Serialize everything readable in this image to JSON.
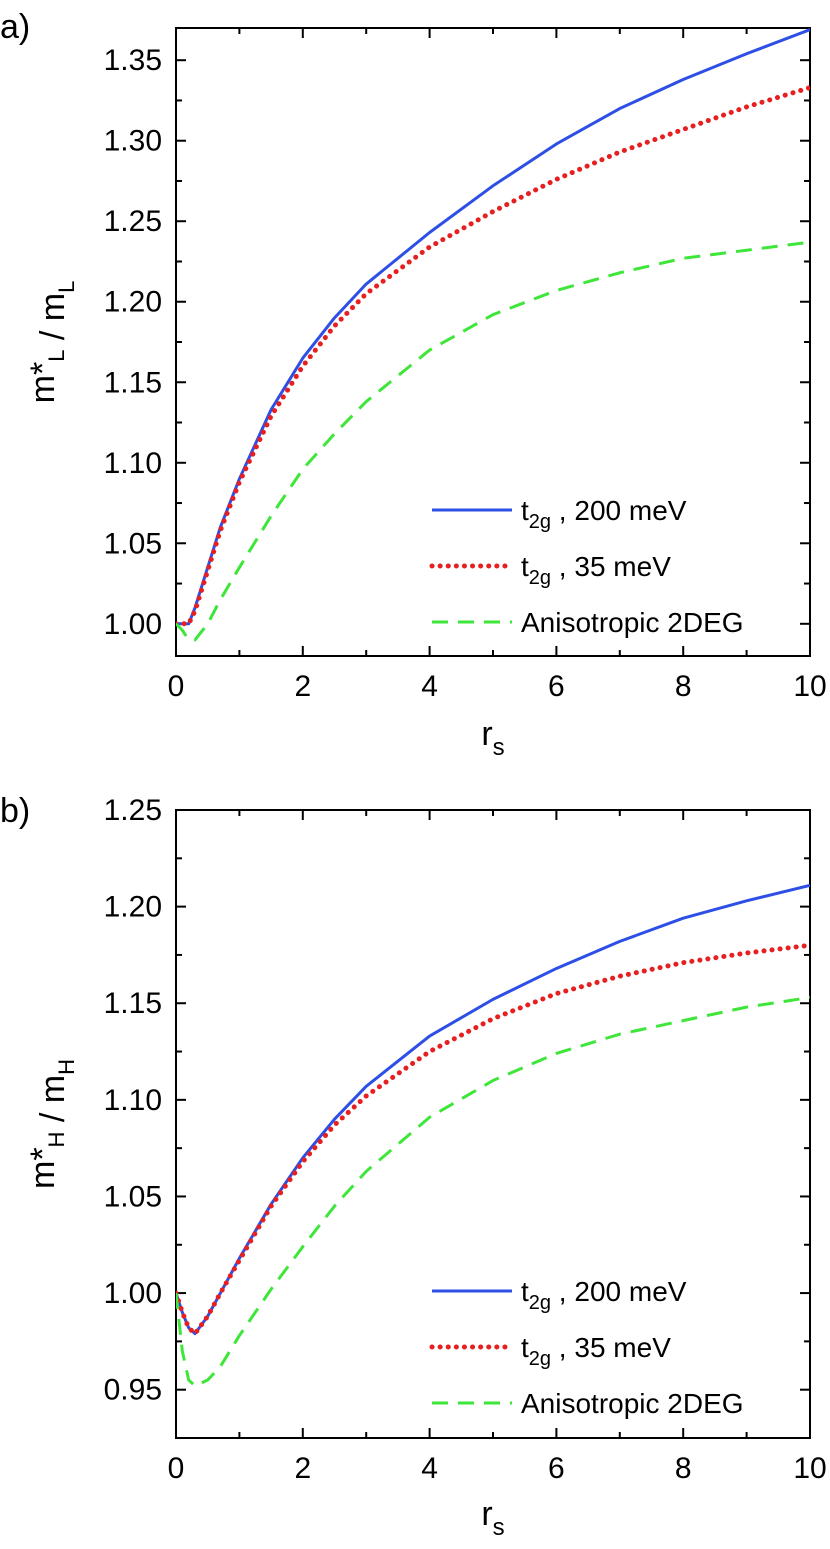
{
  "chart_data": [
    {
      "type": "line",
      "panel_label": "a)",
      "xlabel": "r_s",
      "ylabel": "m*_L / m_L",
      "xlim": [
        0,
        10
      ],
      "ylim": [
        0.98,
        1.37
      ],
      "x_ticks": [
        "0",
        "2",
        "4",
        "6",
        "8",
        "10"
      ],
      "y_ticks": [
        "1.00",
        "1.05",
        "1.10",
        "1.15",
        "1.20",
        "1.25",
        "1.30",
        "1.35"
      ],
      "y_tick_values": [
        1.0,
        1.05,
        1.1,
        1.15,
        1.2,
        1.25,
        1.3,
        1.35
      ],
      "legend_position": "bottom-right",
      "series": [
        {
          "name": "t_2g , 200 meV",
          "style": "solid",
          "color": "#2e4fe6",
          "x": [
            0,
            0.1,
            0.2,
            0.3,
            0.5,
            0.7,
            1.0,
            1.5,
            2,
            2.5,
            3,
            4,
            5,
            6,
            7,
            8,
            9,
            10
          ],
          "y": [
            1.0,
            1.0,
            1.0,
            1.01,
            1.035,
            1.06,
            1.09,
            1.133,
            1.165,
            1.19,
            1.211,
            1.243,
            1.272,
            1.298,
            1.32,
            1.338,
            1.354,
            1.369
          ]
        },
        {
          "name": "t_2g , 35 meV",
          "style": "dotted",
          "color": "#e62020",
          "x": [
            0,
            0.1,
            0.2,
            0.3,
            0.5,
            0.7,
            1.0,
            1.5,
            2,
            2.5,
            3,
            4,
            5,
            6,
            7,
            8,
            9,
            10
          ],
          "y": [
            1.0,
            1.0,
            1.0,
            1.008,
            1.033,
            1.058,
            1.088,
            1.129,
            1.16,
            1.185,
            1.205,
            1.234,
            1.256,
            1.276,
            1.293,
            1.307,
            1.321,
            1.333
          ]
        },
        {
          "name": "Anisotropic 2DEG",
          "style": "dashed",
          "color": "#3ee63a",
          "x": [
            0,
            0.1,
            0.2,
            0.3,
            0.5,
            0.7,
            1.0,
            1.5,
            2,
            2.5,
            3,
            4,
            5,
            6,
            7,
            8,
            9,
            10
          ],
          "y": [
            1.0,
            0.996,
            0.99,
            0.99,
            1.0,
            1.015,
            1.035,
            1.067,
            1.096,
            1.118,
            1.138,
            1.17,
            1.192,
            1.207,
            1.218,
            1.227,
            1.232,
            1.237
          ]
        }
      ]
    },
    {
      "type": "line",
      "panel_label": "b)",
      "xlabel": "r_s",
      "ylabel": "m*_H / m_H",
      "xlim": [
        0,
        10
      ],
      "ylim": [
        0.925,
        1.25
      ],
      "x_ticks": [
        "0",
        "2",
        "4",
        "6",
        "8",
        "10"
      ],
      "y_ticks": [
        "0.95",
        "1.00",
        "1.05",
        "1.10",
        "1.15",
        "1.20",
        "1.25"
      ],
      "y_tick_values": [
        0.95,
        1.0,
        1.05,
        1.1,
        1.15,
        1.2,
        1.25
      ],
      "legend_position": "bottom-right",
      "series": [
        {
          "name": "t_2g , 200 meV",
          "style": "solid",
          "color": "#2e4fe6",
          "x": [
            0,
            0.1,
            0.2,
            0.3,
            0.5,
            0.7,
            1.0,
            1.5,
            2,
            2.5,
            3,
            4,
            5,
            6,
            7,
            8,
            9,
            10
          ],
          "y": [
            1.0,
            0.99,
            0.982,
            0.979,
            0.988,
            1.0,
            1.018,
            1.046,
            1.07,
            1.09,
            1.107,
            1.133,
            1.152,
            1.168,
            1.182,
            1.194,
            1.203,
            1.211
          ]
        },
        {
          "name": "t_2g , 35 meV",
          "style": "dotted",
          "color": "#e62020",
          "x": [
            0,
            0.1,
            0.2,
            0.3,
            0.5,
            0.7,
            1.0,
            1.5,
            2,
            2.5,
            3,
            4,
            5,
            6,
            7,
            8,
            9,
            10
          ],
          "y": [
            1.0,
            0.99,
            0.982,
            0.979,
            0.988,
            1.0,
            1.017,
            1.045,
            1.068,
            1.087,
            1.102,
            1.125,
            1.142,
            1.155,
            1.164,
            1.171,
            1.176,
            1.18
          ]
        },
        {
          "name": "Anisotropic 2DEG",
          "style": "dashed",
          "color": "#3ee63a",
          "x": [
            0,
            0.05,
            0.1,
            0.2,
            0.3,
            0.5,
            0.7,
            1.0,
            1.5,
            2,
            2.5,
            3,
            4,
            5,
            6,
            7,
            8,
            9,
            10
          ],
          "y": [
            1.0,
            0.985,
            0.97,
            0.955,
            0.952,
            0.955,
            0.962,
            0.978,
            1.002,
            1.024,
            1.045,
            1.063,
            1.091,
            1.11,
            1.124,
            1.134,
            1.141,
            1.148,
            1.153
          ]
        }
      ]
    }
  ]
}
